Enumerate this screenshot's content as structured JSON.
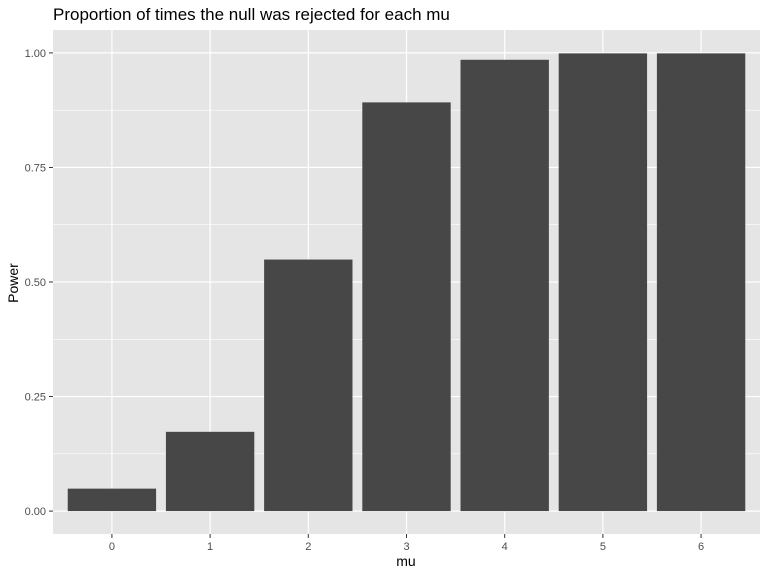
{
  "chart_data": {
    "type": "bar",
    "title": "Proportion of times the null was rejected for each mu",
    "xlabel": "mu",
    "ylabel": "Power",
    "categories": [
      "0",
      "1",
      "2",
      "3",
      "4",
      "5",
      "6"
    ],
    "values": [
      0.049,
      0.173,
      0.549,
      0.892,
      0.985,
      0.999,
      0.999
    ],
    "ylim": [
      -0.05,
      1.05
    ],
    "y_ticks": [
      "0.00",
      "0.25",
      "0.50",
      "0.75",
      "1.00"
    ],
    "y_tick_values": [
      0,
      0.25,
      0.5,
      0.75,
      1.0
    ],
    "grid": true,
    "colors": {
      "bar": "#474747",
      "panel": "#e5e5e5",
      "grid": "#ffffff"
    }
  }
}
